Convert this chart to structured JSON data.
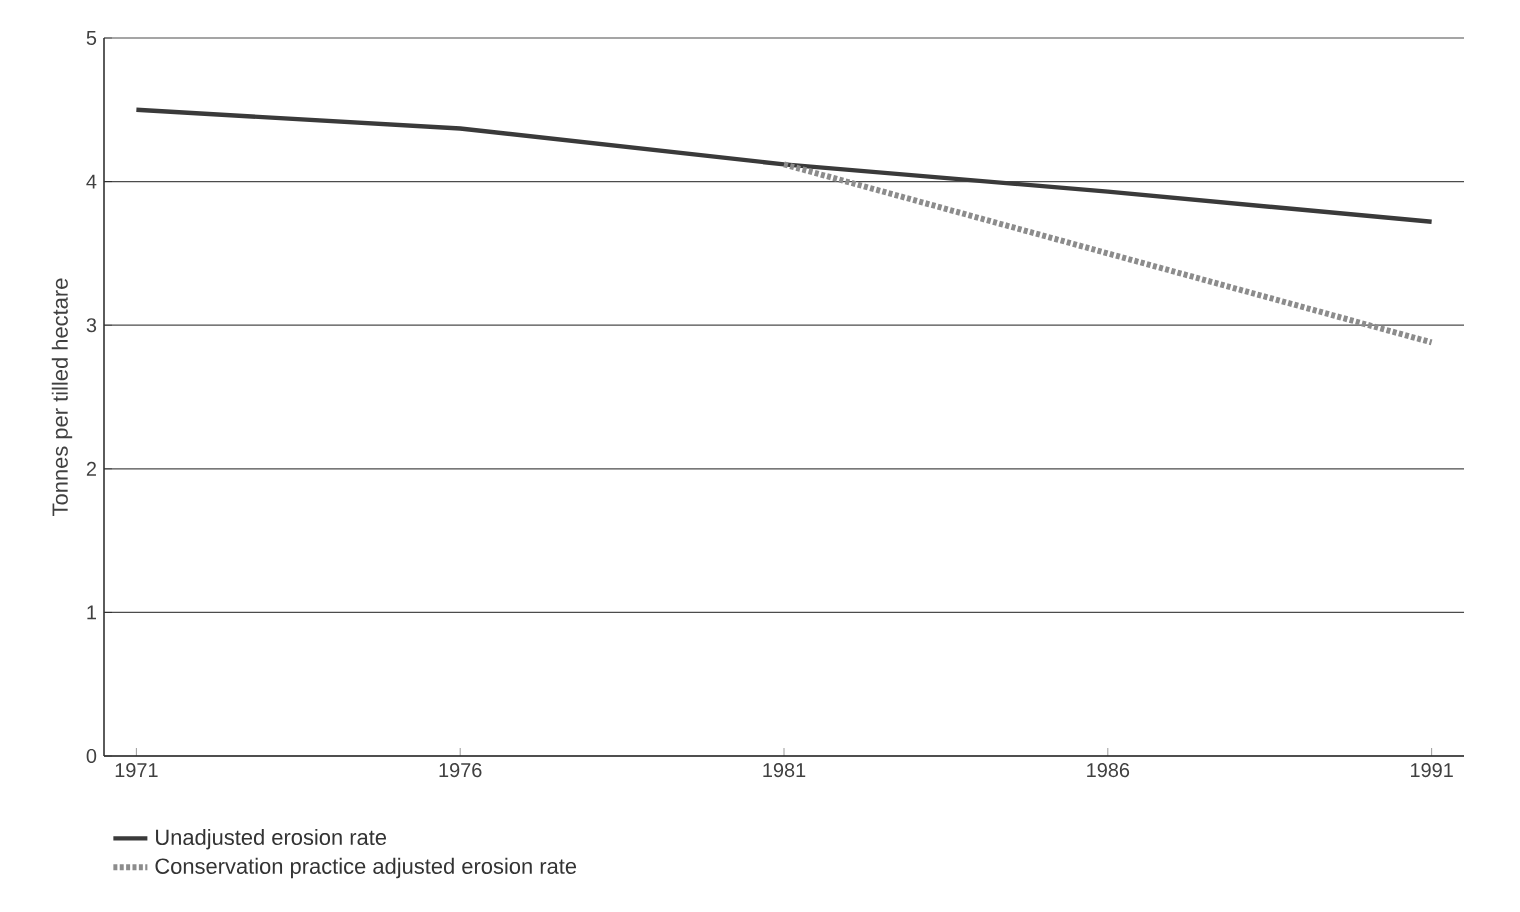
{
  "chart_data": {
    "type": "line",
    "ylabel": "Tonnes per tilled hectare",
    "x": [
      1971,
      1976,
      1981,
      1986,
      1991
    ],
    "xlim": [
      1970.5,
      1991.5
    ],
    "xticks": [
      1971,
      1976,
      1981,
      1986,
      1991
    ],
    "ylim": [
      0,
      5
    ],
    "yticks": [
      0,
      1,
      2,
      3,
      4,
      5
    ],
    "grid": "y",
    "legend": "bottom",
    "marker": "none",
    "series": [
      {
        "name": "Unadjusted erosion rate",
        "color": "#3a3a3a",
        "line_style": "solid",
        "values": [
          4.5,
          4.37,
          4.12,
          3.93,
          3.72
        ]
      },
      {
        "name": "Conservation practice adjusted erosion rate",
        "color": "#8c8c8c",
        "line_style": "dashed",
        "x": [
          1981,
          1986,
          1991
        ],
        "values": [
          4.12,
          3.5,
          2.88
        ]
      }
    ]
  }
}
